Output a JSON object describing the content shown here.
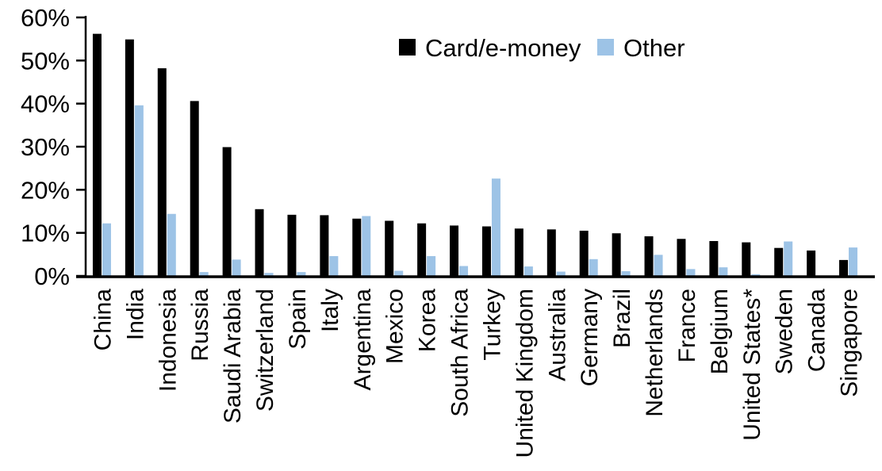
{
  "chart_data": {
    "type": "bar",
    "title": "",
    "xlabel": "",
    "ylabel": "",
    "ylim": [
      0,
      60
    ],
    "grid": false,
    "legend_position": "top-center",
    "ytick_values": [
      0,
      10,
      20,
      30,
      40,
      50,
      60
    ],
    "ytick_labels": [
      "0%",
      "10%",
      "20%",
      "30%",
      "40%",
      "50%",
      "60%"
    ],
    "categories": [
      "China",
      "India",
      "Indonesia",
      "Russia",
      "Saudi Arabia",
      "Switzerland",
      "Spain",
      "Italy",
      "Argentina",
      "Mexico",
      "Korea",
      "South Africa",
      "Turkey",
      "United Kingdom",
      "Australia",
      "Germany",
      "Brazil",
      "Netherlands",
      "France",
      "Belgium",
      "United States*",
      "Sweden",
      "Canada",
      "Singapore"
    ],
    "series": [
      {
        "name": "Card/e-money",
        "color": "#000000",
        "values": [
          56.2,
          54.9,
          48.2,
          40.6,
          29.9,
          15.5,
          14.2,
          14.1,
          13.3,
          12.8,
          12.2,
          11.7,
          11.5,
          11.0,
          10.8,
          10.5,
          9.9,
          9.2,
          8.6,
          8.1,
          7.8,
          6.5,
          5.9,
          3.7
        ]
      },
      {
        "name": "Other",
        "color": "#9DC3E6",
        "values": [
          12.2,
          39.6,
          14.4,
          0.9,
          3.8,
          0.7,
          0.9,
          4.6,
          13.9,
          1.2,
          4.6,
          2.3,
          22.6,
          2.2,
          1.0,
          3.9,
          1.1,
          4.9,
          1.6,
          2.0,
          0.4,
          8.0,
          0.0,
          6.6
        ]
      }
    ],
    "axis_color": "#000000"
  }
}
